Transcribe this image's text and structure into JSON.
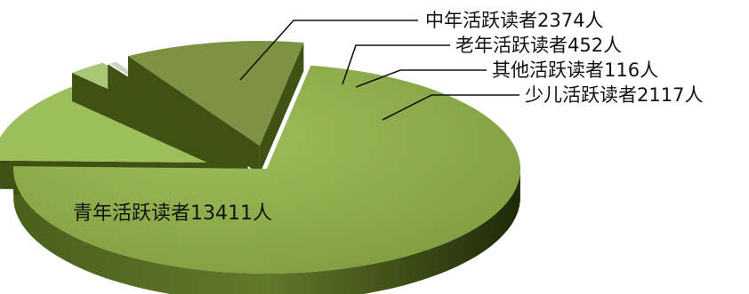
{
  "chart_data": {
    "type": "pie",
    "title": "",
    "style": "3d-exploded",
    "slices": [
      {
        "label": "青年活跃读者13411人",
        "name": "青年活跃读者",
        "value": 13411,
        "color": "#93b34c",
        "label_position": "inside"
      },
      {
        "label": "中年活跃读者2374人",
        "name": "中年活跃读者",
        "value": 2374,
        "color": "#9cbf5c",
        "label_position": "outside"
      },
      {
        "label": "老年活跃读者452人",
        "name": "老年活跃读者",
        "value": 452,
        "color": "#a9c777",
        "label_position": "outside"
      },
      {
        "label": "其他活跃读者116人",
        "name": "其他活跃读者",
        "value": 116,
        "color": "#cfd6bf",
        "label_position": "outside"
      },
      {
        "label": "少儿活跃读者2117人",
        "name": "少儿活跃读者",
        "value": 2117,
        "color": "#7d9343",
        "label_position": "outside"
      }
    ]
  }
}
